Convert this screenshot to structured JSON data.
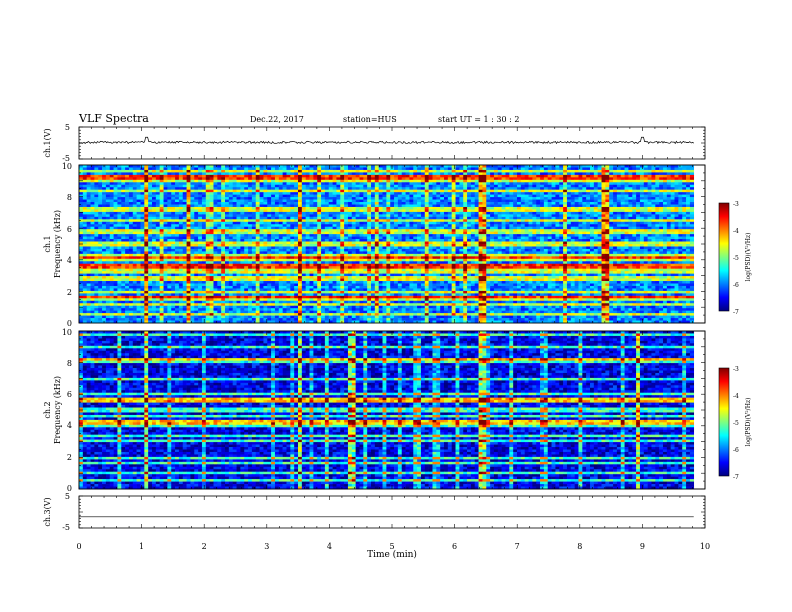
{
  "header": {
    "title": "VLF Spectra",
    "date": "Dec.22, 2017",
    "station": "station=HUS",
    "start": "start  UT =   1 : 30 : 2"
  },
  "chart_data": [
    {
      "id": "ch1-waveform",
      "type": "line",
      "ylabel": "ch.1(V)",
      "ylim": [
        -5,
        5
      ],
      "yticks": [
        "5",
        "-5"
      ],
      "xlim": [
        0,
        10
      ],
      "baseline_v": 0.2,
      "noise_amplitude_v": 0.35,
      "spikes_min": [
        1.08,
        9.0
      ]
    },
    {
      "id": "ch1-spectrogram",
      "type": "heatmap",
      "ylabel_line1": "ch.1",
      "ylabel_line2": "Frequency  (kHz)",
      "ylim_khz": [
        0,
        10
      ],
      "yticks": [
        "0",
        "2",
        "4",
        "6",
        "8",
        "10"
      ],
      "xlim_min": [
        0,
        10
      ],
      "data_extent_min": [
        0,
        9.82
      ],
      "background_log_psd": -6.0,
      "persistent_lines_khz": [
        0.5,
        1.2,
        1.5,
        2.0,
        2.8,
        3.3,
        4.0,
        4.3,
        5.0,
        5.8,
        6.5,
        7.2,
        8.4,
        9.0,
        9.6
      ],
      "bright_lines_khz": [
        1.6,
        3.6,
        4.1,
        9.2
      ],
      "burst_times_min": [
        1.08,
        1.75,
        3.55,
        6.45,
        8.4
      ],
      "colorbar": {
        "label": "log(PSD)(V²/Hz)",
        "range": [
          -7,
          -3
        ],
        "ticks": [
          "-3",
          "-4",
          "-5",
          "-6",
          "-7"
        ]
      }
    },
    {
      "id": "ch2-spectrogram",
      "type": "heatmap",
      "ylabel_line1": "ch.2",
      "ylabel_line2": "Frequency  (kHz)",
      "ylim_khz": [
        0,
        10
      ],
      "yticks": [
        "0",
        "2",
        "4",
        "6",
        "8",
        "10"
      ],
      "xlim_min": [
        0,
        10
      ],
      "data_extent_min": [
        0,
        9.82
      ],
      "background_log_psd": -6.6,
      "persistent_lines_khz": [
        0.5,
        1.0,
        1.6,
        2.0,
        3.0,
        3.4,
        4.0,
        4.6,
        5.0,
        6.0,
        7.0,
        8.0,
        9.0,
        9.8
      ],
      "bright_lines_khz": [
        4.2,
        5.6,
        8.2
      ],
      "burst_times_min": [
        1.08,
        3.55,
        4.35,
        6.45,
        8.95
      ],
      "colorbar": {
        "label": "log(PSD)(V²/Hz)",
        "range": [
          -7,
          -3
        ],
        "ticks": [
          "-3",
          "-4",
          "-5",
          "-6",
          "-7"
        ]
      }
    },
    {
      "id": "ch3-waveform",
      "type": "line",
      "ylabel": "ch.3(V)",
      "ylim": [
        -5,
        5
      ],
      "yticks": [
        "5",
        "-5"
      ],
      "xlim": [
        0,
        10
      ],
      "baseline_v": -1.5,
      "noise_amplitude_v": 0,
      "spikes_min": []
    }
  ],
  "xaxis": {
    "label": "Time  (min)",
    "ticks": [
      "0",
      "1",
      "2",
      "3",
      "4",
      "5",
      "6",
      "7",
      "8",
      "9",
      "10"
    ]
  },
  "colors": {
    "colormap": [
      "#00007f",
      "#0000ff",
      "#007fff",
      "#00ffff",
      "#7fff7f",
      "#ffff00",
      "#ff7f00",
      "#ff0000",
      "#7f0000"
    ]
  }
}
